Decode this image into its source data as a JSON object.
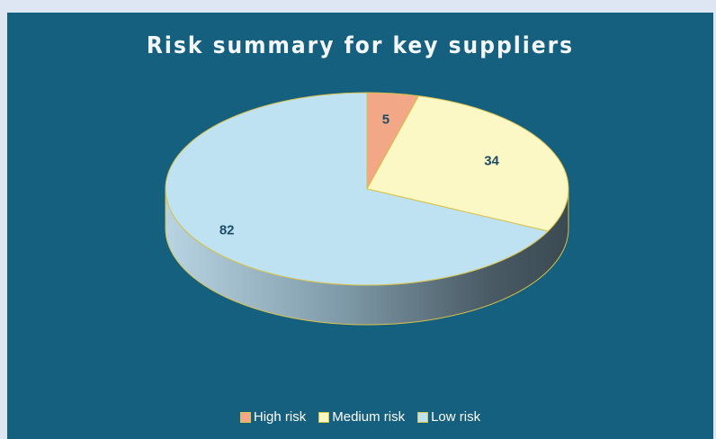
{
  "chart_data": {
    "type": "pie",
    "title": "Risk summary for key suppliers",
    "categories": [
      "High risk",
      "Medium risk",
      "Low risk"
    ],
    "values": [
      5,
      34,
      82
    ],
    "data_labels": [
      "5",
      "34",
      "82"
    ],
    "colors": [
      "#f2a786",
      "#fbf8c6",
      "#bfe2f3"
    ],
    "legend_position": "bottom"
  }
}
